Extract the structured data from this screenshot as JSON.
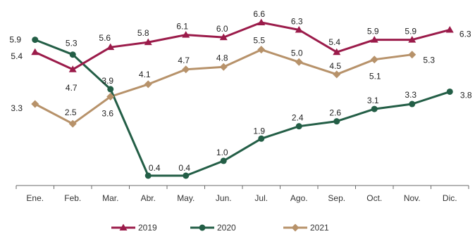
{
  "chart_data": {
    "type": "line",
    "categories": [
      "Ene.",
      "Feb.",
      "Mar.",
      "Abr.",
      "May.",
      "Jun.",
      "Jul.",
      "Ago.",
      "Sep.",
      "Oct.",
      "Nov.",
      "Dic."
    ],
    "series": [
      {
        "name": "2019",
        "color": "#9b1b4a",
        "marker": "triangle",
        "values": [
          5.4,
          4.7,
          5.6,
          5.8,
          6.1,
          6.0,
          6.6,
          6.3,
          5.4,
          5.9,
          5.9,
          6.3
        ],
        "labels": [
          "5.4",
          "4.7",
          "5.6",
          "5.8",
          "6.1",
          "6.0",
          "6.6",
          "6.3",
          "5.4",
          "5.9",
          "5.9",
          "6.3"
        ]
      },
      {
        "name": "2020",
        "color": "#235e46",
        "marker": "circle",
        "values": [
          5.9,
          5.3,
          3.9,
          0.4,
          0.4,
          1.0,
          1.9,
          2.4,
          2.6,
          3.1,
          3.3,
          3.8
        ],
        "labels": [
          "5.9",
          "5.3",
          "3.9",
          "0.4",
          "0.4",
          "1.0",
          "1.9",
          "2.4",
          "2.6",
          "3.1",
          "3.3",
          "3.8"
        ]
      },
      {
        "name": "2021",
        "color": "#b7926a",
        "marker": "diamond",
        "values": [
          3.3,
          2.5,
          3.6,
          4.1,
          4.7,
          4.8,
          5.5,
          5.0,
          4.5,
          5.1,
          5.3,
          null
        ],
        "labels": [
          "3.3",
          "2.5",
          "3.6",
          "4.1",
          "4.7",
          "4.8",
          "5.5",
          "5.0",
          "4.5",
          "5.1",
          "5.3",
          null
        ]
      }
    ],
    "title": "",
    "xlabel": "",
    "ylabel": "",
    "ylim": [
      0,
      7
    ],
    "y_axis_visible": false,
    "grid": false,
    "legend_position": "bottom-center"
  }
}
